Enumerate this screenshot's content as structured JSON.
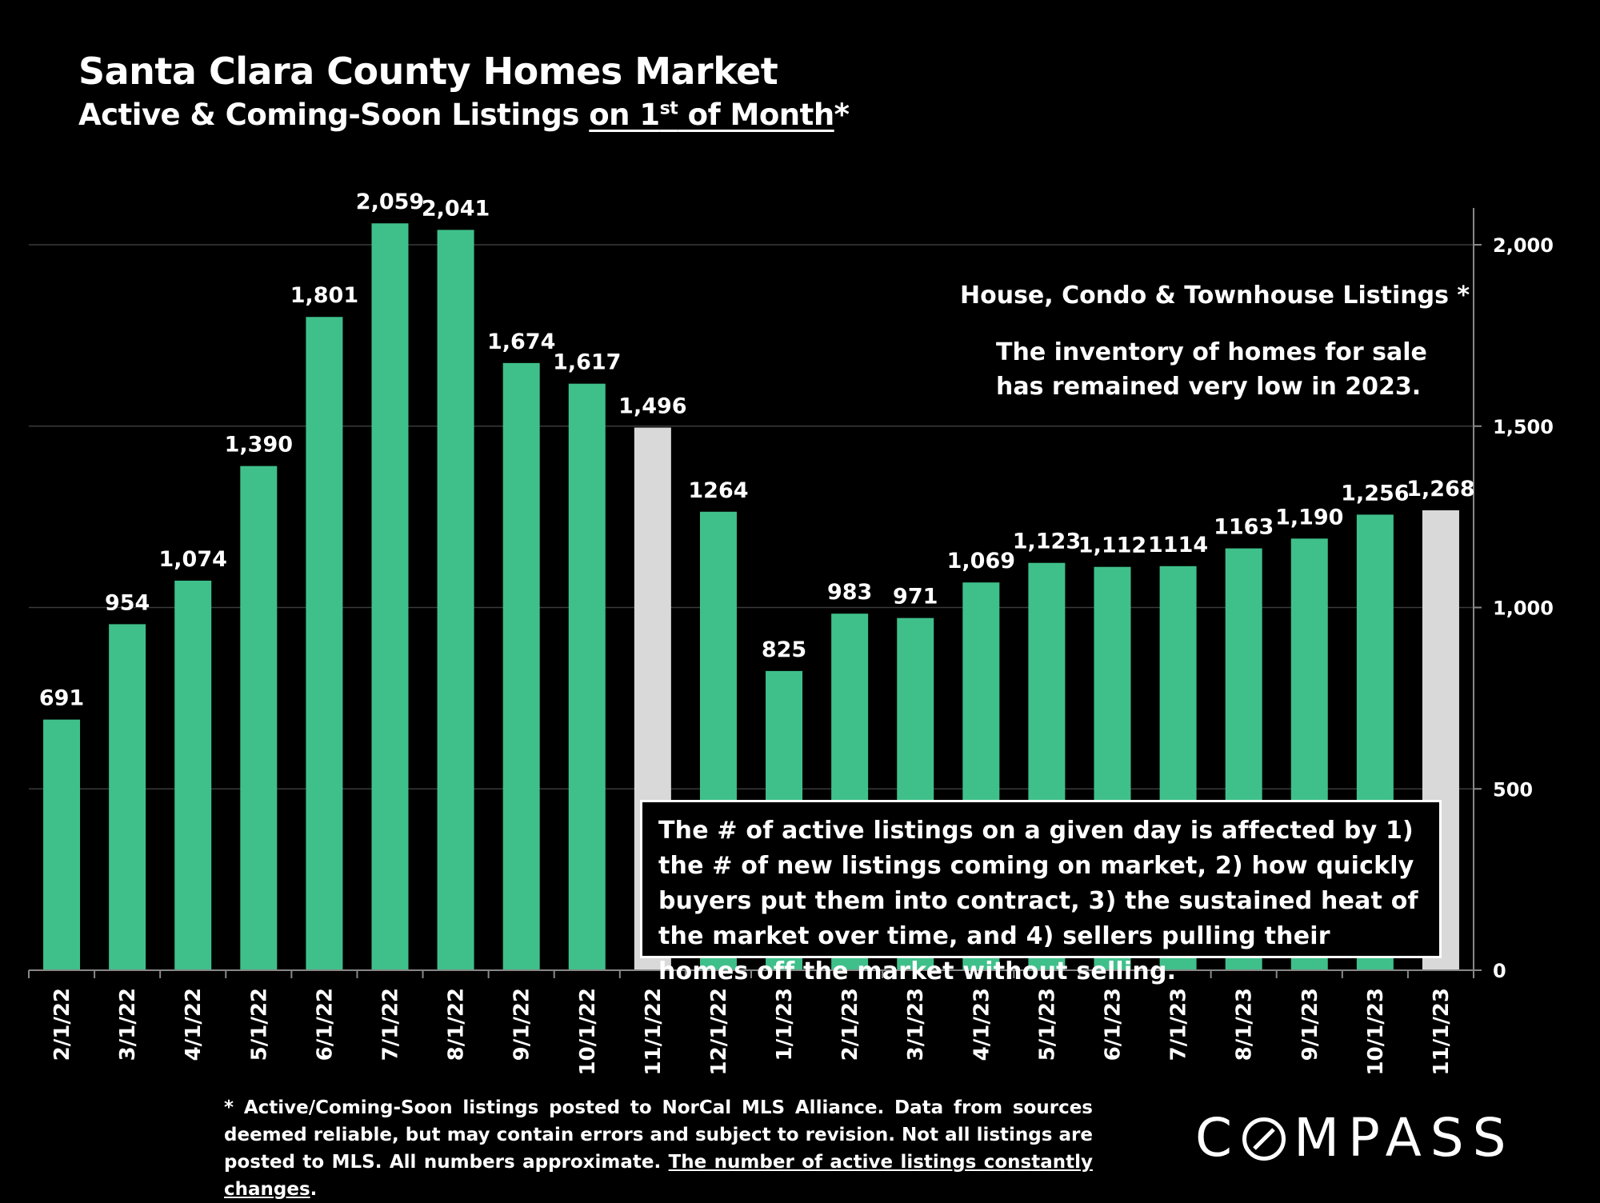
{
  "header": {
    "title": "Santa Clara County Homes Market",
    "subtitle_prefix": "Active & Coming-Soon Listings ",
    "subtitle_underlined_a": "on 1",
    "subtitle_sup": "st",
    "subtitle_underlined_b": " of Month",
    "subtitle_suffix": "*"
  },
  "annotations": {
    "series_label": "House, Condo & Townhouse Listings *",
    "inventory_line1": "The inventory of homes for sale",
    "inventory_line2": "has remained very low in 2023.",
    "note": "The # of active listings on a given day is affected by 1) the # of new listings coming on market, 2) how quickly buyers put them into contract, 3) the sustained heat of the market over time, and 4) sellers pulling their homes off the market without selling."
  },
  "footnote": {
    "text": "* Active/Coming-Soon listings posted to NorCal MLS Alliance.  Data from sources deemed reliable, but may contain errors and subject to revision.  Not all listings are posted to MLS. All numbers approximate. ",
    "underlined": "The number of active listings constantly changes",
    "end": "."
  },
  "logo": {
    "text_before": "C",
    "text_after": "MPASS"
  },
  "colors": {
    "primary_bar": "#3fc08a",
    "highlight_bar": "#d9d9d9",
    "gridline": "#3a3a3a",
    "background": "#000000"
  },
  "chart_data": {
    "type": "bar",
    "categories": [
      "2/1/22",
      "3/1/22",
      "4/1/22",
      "5/1/22",
      "6/1/22",
      "7/1/22",
      "8/1/22",
      "9/1/22",
      "10/1/22",
      "11/1/22",
      "12/1/22",
      "1/1/23",
      "2/1/23",
      "3/1/23",
      "4/1/23",
      "5/1/23",
      "6/1/23",
      "7/1/23",
      "8/1/23",
      "9/1/23",
      "10/1/23",
      "11/1/23"
    ],
    "values": [
      691,
      954,
      1074,
      1390,
      1801,
      2059,
      2041,
      1674,
      1617,
      1496,
      1264,
      825,
      983,
      971,
      1069,
      1123,
      1112,
      1114,
      1163,
      1190,
      1256,
      1268
    ],
    "data_labels": [
      "691",
      "954",
      "1,074",
      "1,390",
      "1,801",
      "2,059",
      "2,041",
      "1,674",
      "1,617",
      "1,496",
      "1264",
      "825",
      "983",
      "971",
      "1,069",
      "1,123",
      "1,112",
      "1114",
      "1163",
      "1,190",
      "1,256",
      "1,268"
    ],
    "highlighted_categories": [
      "11/1/22",
      "11/1/23"
    ],
    "y_axis_position": "right",
    "y_ticks": [
      0,
      500,
      1000,
      1500,
      2000
    ],
    "y_tick_labels": [
      "0",
      "500",
      "1,000",
      "1,500",
      "2,000"
    ],
    "ylim": [
      0,
      2150
    ],
    "grid": true,
    "xlabel": "",
    "ylabel": ""
  }
}
